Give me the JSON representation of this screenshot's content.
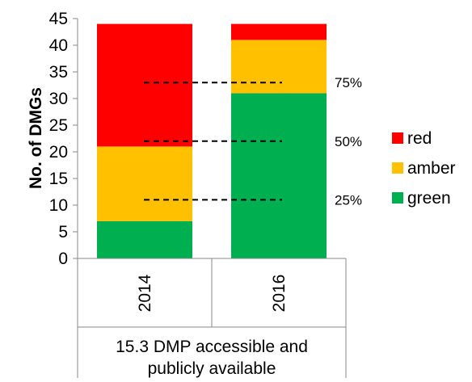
{
  "chart_data": {
    "type": "bar",
    "stacked": true,
    "categories": [
      "2014",
      "2016"
    ],
    "group_label": "15.3 DMP accessible and publicly available",
    "group_label_lines": [
      "15.3 DMP accessible and",
      "publicly available"
    ],
    "series": [
      {
        "name": "green",
        "color": "#00b050",
        "values": [
          7,
          31
        ]
      },
      {
        "name": "amber",
        "color": "#ffc000",
        "values": [
          14,
          10
        ]
      },
      {
        "name": "red",
        "color": "#ff0000",
        "values": [
          23,
          3
        ]
      }
    ],
    "ylabel": "No. of DMGs",
    "ylim": [
      0,
      45
    ],
    "yticks": [
      0,
      5,
      10,
      15,
      20,
      25,
      30,
      35,
      40,
      45
    ],
    "reference_lines": [
      {
        "value": 11,
        "label": "25%"
      },
      {
        "value": 22,
        "label": "50%"
      },
      {
        "value": 33,
        "label": "75%"
      }
    ],
    "legend_order": [
      "red",
      "amber",
      "green"
    ],
    "legend_position": "right",
    "grid": false
  }
}
